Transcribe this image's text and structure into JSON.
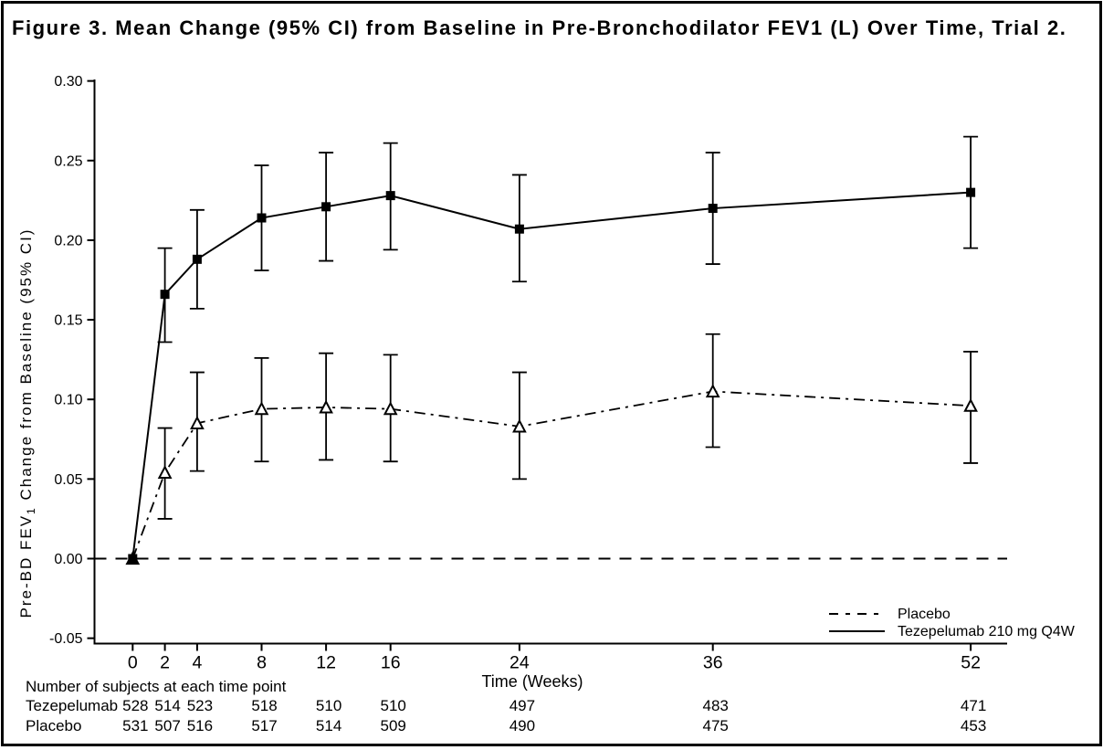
{
  "title": "Figure 3. Mean Change (95% CI) from Baseline in Pre-Bronchodilator FEV1 (L) Over Time, Trial 2.",
  "chart_data": {
    "type": "line",
    "x": [
      0,
      2,
      4,
      8,
      12,
      16,
      24,
      36,
      52
    ],
    "xlabel": "Time (Weeks)",
    "ylabel_main": "Pre-BD FEV",
    "ylabel_sub": "1",
    "ylabel_rest": " Change from Baseline (95% CI)",
    "ylim": [
      -0.05,
      0.3
    ],
    "y_ticks": [
      0.3,
      0.25,
      0.2,
      0.15,
      0.1,
      0.05,
      0.0,
      -0.05
    ],
    "zero_reference_line": true,
    "series": [
      {
        "name": "Placebo",
        "line_style": "dashdot",
        "marker": "open-triangle",
        "values": [
          0.0,
          0.054,
          0.085,
          0.094,
          0.095,
          0.094,
          0.083,
          0.105,
          0.096
        ],
        "ci_low": [
          null,
          0.025,
          0.055,
          0.061,
          0.062,
          0.061,
          0.05,
          0.07,
          0.06
        ],
        "ci_high": [
          null,
          0.082,
          0.117,
          0.126,
          0.129,
          0.128,
          0.117,
          0.141,
          0.13
        ]
      },
      {
        "name": "Tezepelumab 210 mg Q4W",
        "line_style": "solid",
        "marker": "filled-square",
        "values": [
          0.0,
          0.166,
          0.188,
          0.214,
          0.221,
          0.228,
          0.207,
          0.22,
          0.23
        ],
        "ci_low": [
          null,
          0.136,
          0.157,
          0.181,
          0.187,
          0.194,
          0.174,
          0.185,
          0.195
        ],
        "ci_high": [
          null,
          0.195,
          0.219,
          0.247,
          0.255,
          0.261,
          0.241,
          0.255,
          0.265
        ]
      }
    ],
    "legend": [
      {
        "label": "Placebo",
        "swatch": "dashed"
      },
      {
        "label": "Tezepelumab 210 mg Q4W",
        "swatch": "solid"
      }
    ]
  },
  "subjects_table": {
    "caption": "Number of subjects at each time point",
    "rows": [
      {
        "label": "Tezepelumab",
        "counts": [
          "528",
          "514",
          "523",
          "518",
          "510",
          "510",
          "497",
          "483",
          "471"
        ]
      },
      {
        "label": "Placebo",
        "counts": [
          "531",
          "507",
          "516",
          "517",
          "514",
          "509",
          "490",
          "475",
          "453"
        ]
      }
    ]
  }
}
